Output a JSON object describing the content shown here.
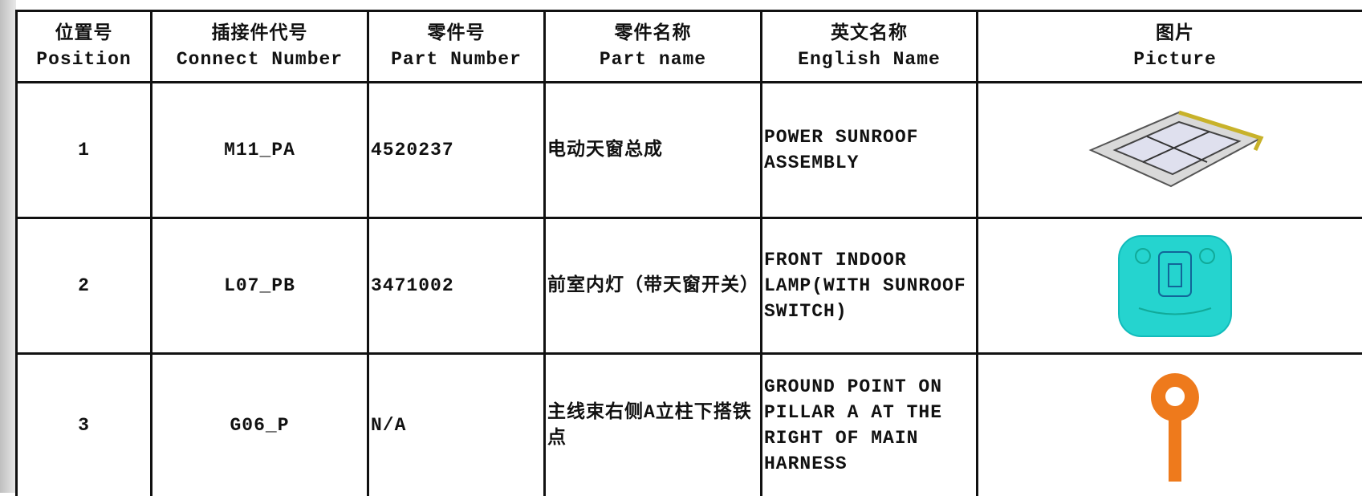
{
  "table": {
    "header": [
      {
        "cn": "位置号",
        "en": "Position"
      },
      {
        "cn": "插接件代号",
        "en": "Connect Number"
      },
      {
        "cn": "零件号",
        "en": "Part Number"
      },
      {
        "cn": "零件名称",
        "en": "Part name"
      },
      {
        "cn": "英文名称",
        "en": "English Name"
      },
      {
        "cn": "图片",
        "en": "Picture"
      }
    ],
    "rows": [
      [
        "1",
        "M11_PA",
        "4520237",
        "电动天窗总成",
        "POWER SUNROOF ASSEMBLY"
      ],
      [
        "2",
        "L07_PB",
        "3471002",
        "前室内灯（带天窗开关）",
        "FRONT INDOOR LAMP(WITH SUNROOF SWITCH)"
      ],
      [
        "3",
        "G06_P",
        "N/A",
        "主线束右侧A立柱下搭铁点",
        "GROUND POINT ON PILLAR A AT THE RIGHT OF MAIN HARNESS"
      ]
    ]
  }
}
